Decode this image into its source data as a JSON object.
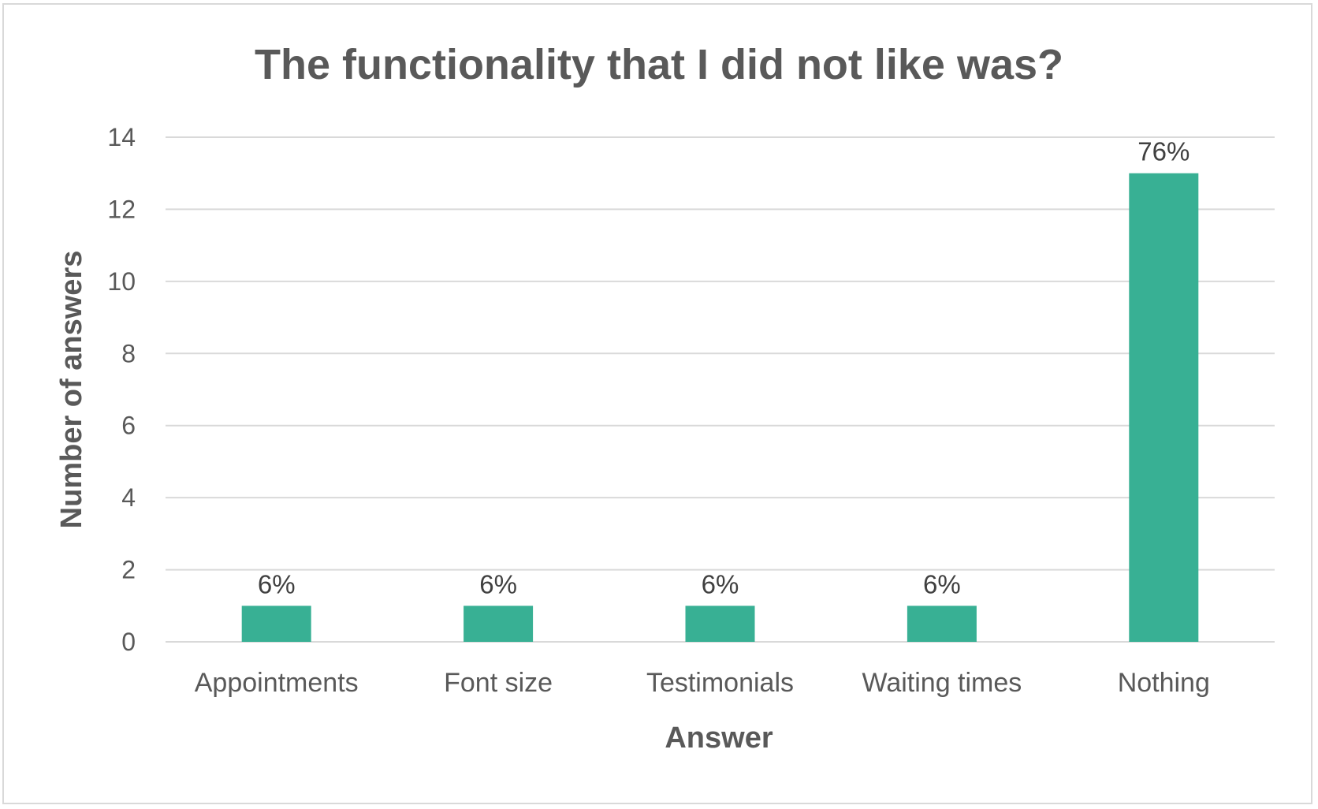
{
  "chart_data": {
    "type": "bar",
    "title": "The functionality that I did not like was?",
    "xlabel": "Answer",
    "ylabel": "Number of answers",
    "categories": [
      "Appointments",
      "Font size",
      "Testimonials",
      "Waiting times",
      "Nothing"
    ],
    "values": [
      1,
      1,
      1,
      1,
      13
    ],
    "data_labels": [
      "6%",
      "6%",
      "6%",
      "6%",
      "76%"
    ],
    "ylim": [
      0,
      14
    ],
    "yticks": [
      0,
      2,
      4,
      6,
      8,
      10,
      12,
      14
    ],
    "grid": true,
    "legend": "none",
    "bar_color": "#38B094"
  }
}
